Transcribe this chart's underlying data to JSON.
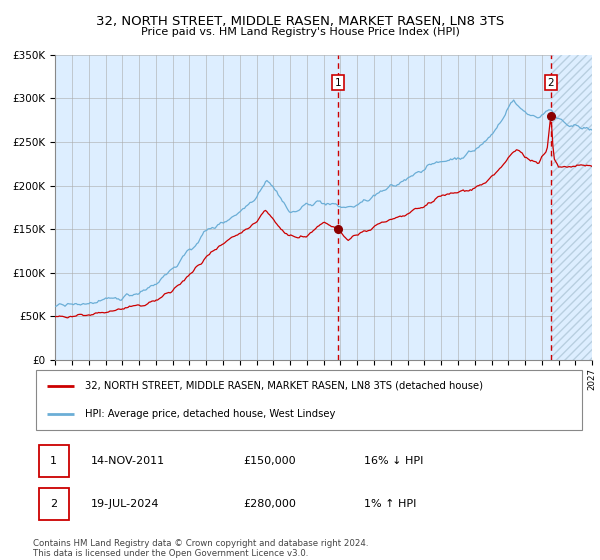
{
  "title": "32, NORTH STREET, MIDDLE RASEN, MARKET RASEN, LN8 3TS",
  "subtitle": "Price paid vs. HM Land Registry's House Price Index (HPI)",
  "legend_line1": "32, NORTH STREET, MIDDLE RASEN, MARKET RASEN, LN8 3TS (detached house)",
  "legend_line2": "HPI: Average price, detached house, West Lindsey",
  "annotation1": {
    "label": "1",
    "date": "14-NOV-2011",
    "price": "£150,000",
    "pct": "16% ↓ HPI"
  },
  "annotation2": {
    "label": "2",
    "date": "19-JUL-2024",
    "price": "£280,000",
    "pct": "1% ↑ HPI"
  },
  "footer1": "Contains HM Land Registry data © Crown copyright and database right 2024.",
  "footer2": "This data is licensed under the Open Government Licence v3.0.",
  "hpi_color": "#6baed6",
  "price_color": "#cc0000",
  "marker_color": "#8b0000",
  "bg_color": "#ddeeff",
  "grid_color": "#aaaaaa",
  "hatch_color": "#c8ddf0",
  "ylim": [
    0,
    350000
  ],
  "yticks": [
    0,
    50000,
    100000,
    150000,
    200000,
    250000,
    300000,
    350000
  ],
  "ytick_labels": [
    "£0",
    "£50K",
    "£100K",
    "£150K",
    "£200K",
    "£250K",
    "£300K",
    "£350K"
  ],
  "xstart_year": 1995,
  "xend_year": 2027,
  "sale1_year": 2011.87,
  "sale2_year": 2024.54,
  "sale1_price": 150000,
  "sale2_price": 280000
}
